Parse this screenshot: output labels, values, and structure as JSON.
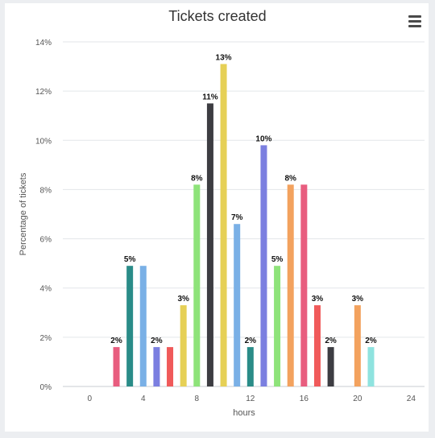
{
  "chart_data": {
    "type": "bar",
    "title": "Tickets created",
    "xlabel": "hours",
    "ylabel": "Percentage of tickets",
    "xlim": [
      -2,
      25
    ],
    "ylim": [
      0,
      14
    ],
    "x_ticks": [
      0,
      4,
      8,
      12,
      16,
      20,
      24
    ],
    "y_ticks": [
      0,
      2,
      4,
      6,
      8,
      10,
      12,
      14
    ],
    "y_tick_suffix": "%",
    "grid": true,
    "legend": "none",
    "bars": [
      {
        "x": 2,
        "value": 1.6,
        "label": "2%",
        "color": "#e85d7f"
      },
      {
        "x": 3,
        "value": 4.9,
        "label": "5%",
        "color": "#2a8c88"
      },
      {
        "x": 4,
        "value": 4.9,
        "label": "",
        "color": "#7ab0e6"
      },
      {
        "x": 5,
        "value": 1.6,
        "label": "2%",
        "color": "#7b7fe0"
      },
      {
        "x": 6,
        "value": 1.6,
        "label": "",
        "color": "#f05a5a"
      },
      {
        "x": 7,
        "value": 3.3,
        "label": "3%",
        "color": "#e6d056"
      },
      {
        "x": 8,
        "value": 8.2,
        "label": "8%",
        "color": "#8ee37a"
      },
      {
        "x": 9,
        "value": 11.5,
        "label": "11%",
        "color": "#3d3d42"
      },
      {
        "x": 10,
        "value": 13.1,
        "label": "13%",
        "color": "#e6d056"
      },
      {
        "x": 11,
        "value": 6.6,
        "label": "7%",
        "color": "#7ab0e6"
      },
      {
        "x": 12,
        "value": 1.6,
        "label": "2%",
        "color": "#2a8c88"
      },
      {
        "x": 13,
        "value": 9.8,
        "label": "10%",
        "color": "#7b7fe0"
      },
      {
        "x": 14,
        "value": 4.9,
        "label": "5%",
        "color": "#8ee37a"
      },
      {
        "x": 15,
        "value": 8.2,
        "label": "8%",
        "color": "#f3a25e"
      },
      {
        "x": 16,
        "value": 8.2,
        "label": "",
        "color": "#e85d7f"
      },
      {
        "x": 17,
        "value": 3.3,
        "label": "3%",
        "color": "#f05a5a"
      },
      {
        "x": 18,
        "value": 1.6,
        "label": "2%",
        "color": "#3d3d42"
      },
      {
        "x": 20,
        "value": 3.3,
        "label": "3%",
        "color": "#f3a25e"
      },
      {
        "x": 21,
        "value": 1.6,
        "label": "2%",
        "color": "#8fe3df"
      }
    ]
  },
  "menu_icon": "hamburger-menu-icon"
}
